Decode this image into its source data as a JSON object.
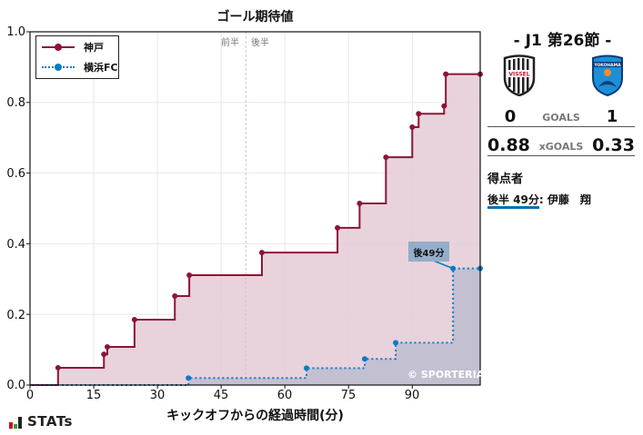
{
  "chart_data": {
    "type": "line",
    "subtype": "step-cumulative",
    "title": "ゴール期待値",
    "xlabel": "キックオフからの経過時間(分)",
    "ylabel": "",
    "xlim": [
      0,
      106
    ],
    "ylim": [
      0,
      1.0
    ],
    "x_ticks": [
      0,
      15,
      30,
      45,
      60,
      75,
      90
    ],
    "y_ticks": [
      "0.0",
      "0.2",
      "0.4",
      "0.6",
      "0.8",
      "1.0"
    ],
    "grid": true,
    "legend_position": "upper left",
    "halftime_marker": {
      "x": 50.8,
      "left_label": "前半",
      "right_label": "後半"
    },
    "series": [
      {
        "name": "神戸",
        "color": "#8b1538",
        "fill": "#e4cbd6",
        "line_style": "solid",
        "points": [
          {
            "x": 6.6,
            "y": 0.049
          },
          {
            "x": 17.4,
            "y": 0.087
          },
          {
            "x": 18.2,
            "y": 0.108
          },
          {
            "x": 24.6,
            "y": 0.185
          },
          {
            "x": 34.1,
            "y": 0.252
          },
          {
            "x": 37.5,
            "y": 0.311
          },
          {
            "x": 54.6,
            "y": 0.375
          },
          {
            "x": 72.4,
            "y": 0.445
          },
          {
            "x": 77.6,
            "y": 0.514
          },
          {
            "x": 83.8,
            "y": 0.645
          },
          {
            "x": 90.0,
            "y": 0.73
          },
          {
            "x": 91.5,
            "y": 0.768
          },
          {
            "x": 97.5,
            "y": 0.79
          },
          {
            "x": 97.9,
            "y": 0.88
          },
          {
            "x": 106.0,
            "y": 0.88
          }
        ],
        "final_xg": 0.88
      },
      {
        "name": "横浜FC",
        "color": "#0a7bc2",
        "fill": "#bcbcd0",
        "line_style": "dotted",
        "points": [
          {
            "x": 37.3,
            "y": 0.02
          },
          {
            "x": 65.1,
            "y": 0.048
          },
          {
            "x": 78.8,
            "y": 0.074
          },
          {
            "x": 86.1,
            "y": 0.12
          },
          {
            "x": 99.6,
            "y": 0.33
          },
          {
            "x": 106.0,
            "y": 0.33
          }
        ],
        "final_xg": 0.33
      }
    ],
    "annotations": [
      {
        "text": "後49分",
        "x": 99.6,
        "y": 0.33,
        "team": "横浜FC"
      },
      {
        "text": "© SPORTERIA",
        "position": "bottom-right"
      }
    ]
  },
  "chart": {
    "title": "ゴール期待値",
    "xlabel": "キックオフからの経過時間(分)",
    "y_tick_labels": [
      "1.0",
      "0.8",
      "0.6",
      "0.4",
      "0.2",
      "0.0"
    ],
    "x_tick_labels": [
      "0",
      "15",
      "30",
      "45",
      "60",
      "75",
      "90"
    ],
    "first_half_label": "前半",
    "second_half_label": "後半",
    "legend": [
      {
        "label": "神戸"
      },
      {
        "label": "横浜FC"
      }
    ],
    "goal_annotation": "後49分",
    "copyright": "© SPORTERIA",
    "colors": {
      "home_line": "#8b1538",
      "home_fill": "#e4cbd6",
      "away_line": "#0a7bc2",
      "away_fill": "#bcbcd0"
    }
  },
  "match": {
    "matchday": "-  J1 第26節  -",
    "home_team": "神戸",
    "away_team": "横浜FC",
    "home_crest_text": "VISSEL",
    "away_crest_text": "YOKOHAMA",
    "home_goals": "0",
    "away_goals": "1",
    "goals_label": "GOALS",
    "home_xg": "0.88",
    "away_xg": "0.33",
    "xg_label": "xGOALS",
    "scorers_title": "得点者",
    "scorers": [
      {
        "time": "後半 49分",
        "separator": ": ",
        "name": "伊藤　翔"
      }
    ]
  },
  "footer": {
    "logo_text": "STATs",
    "logo_bar_colors": [
      "#d0021b",
      "#2e9d3e",
      "#222222"
    ]
  }
}
